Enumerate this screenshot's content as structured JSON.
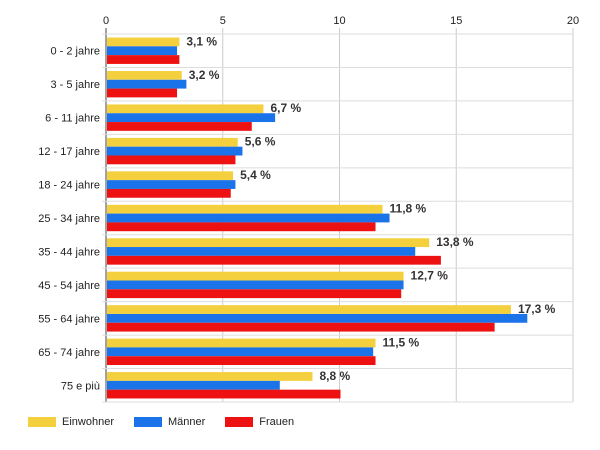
{
  "chart_data": {
    "type": "bar",
    "orientation": "horizontal",
    "xlim": [
      0,
      20
    ],
    "x_ticks": [
      "0",
      "5",
      "10",
      "15",
      "20"
    ],
    "categories": [
      "0 - 2 jahre",
      "3 - 5 jahre",
      "6 - 11 jahre",
      "12 - 17 jahre",
      "18 - 24 jahre",
      "25 - 34 jahre",
      "35 - 44 jahre",
      "45 - 54 jahre",
      "55 - 64 jahre",
      "65 - 74 jahre",
      "75 e più"
    ],
    "series": [
      {
        "name": "Einwohner",
        "color": "#f4d03f",
        "values": [
          3.1,
          3.2,
          6.7,
          5.6,
          5.4,
          11.8,
          13.8,
          12.7,
          17.3,
          11.5,
          8.8
        ]
      },
      {
        "name": "Männer",
        "color": "#1a73e8",
        "values": [
          3.0,
          3.4,
          7.2,
          5.8,
          5.5,
          12.1,
          13.2,
          12.7,
          18.0,
          11.4,
          7.4
        ]
      },
      {
        "name": "Frauen",
        "color": "#ee1111",
        "values": [
          3.1,
          3.0,
          6.2,
          5.5,
          5.3,
          11.5,
          14.3,
          12.6,
          16.6,
          11.5,
          10.0
        ]
      }
    ],
    "data_labels": [
      "3,1 %",
      "3,2 %",
      "6,7 %",
      "5,6 %",
      "5,4 %",
      "11,8 %",
      "13,8 %",
      "12,7 %",
      "17,3 %",
      "11,5 %",
      "8,8 %"
    ],
    "grid": true,
    "legend_position": "bottom-left"
  }
}
